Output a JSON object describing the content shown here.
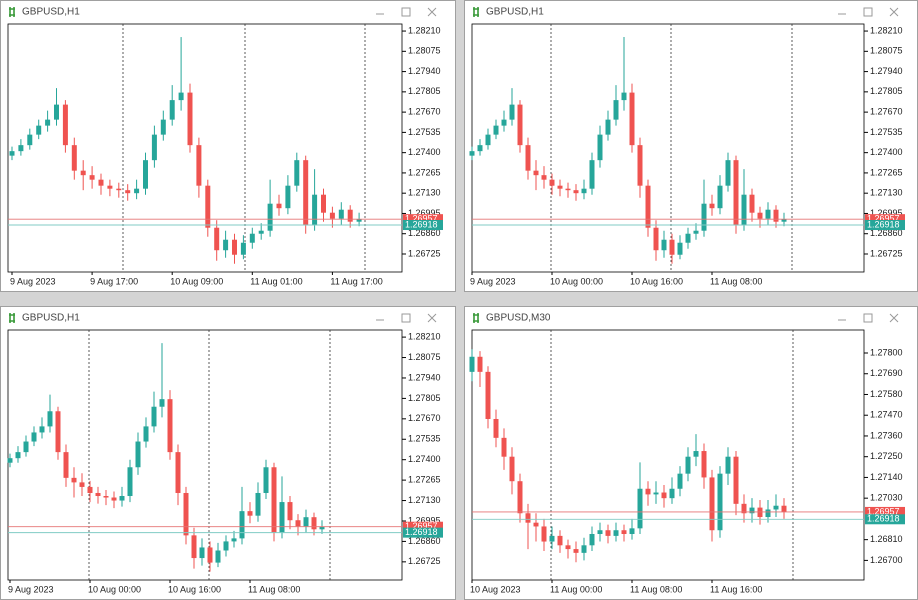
{
  "chart_data": [
    {
      "type": "candlestick",
      "title": "GBPUSD,H1",
      "categories": [
        "9 Aug 2023",
        null,
        null,
        null,
        null,
        null,
        null,
        null,
        null,
        "9 Aug 17:00",
        null,
        null,
        null,
        null,
        null,
        null,
        null,
        null,
        "10 Aug 09:00",
        null,
        null,
        null,
        null,
        null,
        null,
        null,
        null,
        "11 Aug 01:00",
        null,
        null,
        null,
        null,
        null,
        null,
        null,
        null,
        "11 Aug 17:00",
        null,
        null,
        null
      ],
      "open": [
        1.2738,
        1.2741,
        1.2745,
        1.2752,
        1.2758,
        1.2762,
        1.2772,
        1.2745,
        1.2728,
        1.2725,
        1.2722,
        1.2718,
        1.2716,
        1.2715,
        1.2713,
        1.2716,
        1.2735,
        1.2752,
        1.2762,
        1.2775,
        1.278,
        1.2745,
        1.2718,
        1.269,
        1.2675,
        1.2682,
        1.2672,
        1.268,
        1.2686,
        1.2688,
        1.2706,
        1.2703,
        1.2718,
        1.2735,
        1.2692,
        1.2712,
        1.27,
        1.2696,
        1.2702,
        1.2694
      ],
      "high": [
        1.2744,
        1.2749,
        1.2756,
        1.2762,
        1.2768,
        1.2783,
        1.2775,
        1.275,
        1.2735,
        1.2731,
        1.2726,
        1.2722,
        1.272,
        1.2719,
        1.2722,
        1.274,
        1.2758,
        1.2768,
        1.2785,
        1.2817,
        1.2786,
        1.275,
        1.2722,
        1.2695,
        1.2688,
        1.2686,
        1.2685,
        1.269,
        1.2693,
        1.2722,
        1.2712,
        1.2725,
        1.274,
        1.2738,
        1.2729,
        1.2716,
        1.2704,
        1.2707,
        1.2705,
        1.27
      ],
      "low": [
        1.2735,
        1.2738,
        1.2742,
        1.2749,
        1.2754,
        1.2758,
        1.274,
        1.2722,
        1.2715,
        1.2716,
        1.2712,
        1.2711,
        1.271,
        1.2708,
        1.2709,
        1.2712,
        1.273,
        1.2748,
        1.2758,
        1.2768,
        1.274,
        1.271,
        1.2684,
        1.2668,
        1.267,
        1.2666,
        1.2669,
        1.2676,
        1.2682,
        1.2684,
        1.2698,
        1.2699,
        1.2714,
        1.2686,
        1.2688,
        1.2694,
        1.269,
        1.2692,
        1.269,
        1.2691
      ],
      "close": [
        1.2741,
        1.2745,
        1.2752,
        1.2758,
        1.2762,
        1.2772,
        1.2745,
        1.2728,
        1.2725,
        1.2722,
        1.2718,
        1.2716,
        1.2715,
        1.2713,
        1.2716,
        1.2735,
        1.2752,
        1.2762,
        1.2775,
        1.278,
        1.2745,
        1.2718,
        1.269,
        1.2675,
        1.2682,
        1.2672,
        1.268,
        1.2686,
        1.2688,
        1.2706,
        1.2703,
        1.2718,
        1.2735,
        1.2692,
        1.2712,
        1.27,
        1.2696,
        1.2702,
        1.2694,
        1.26957
      ],
      "up_color": "#26a69a",
      "down_color": "#ef5350",
      "ylim": [
        1.26605,
        1.28257
      ],
      "yticks": [
        {
          "value": 1.2821,
          "label": "1.28210"
        },
        1.28075,
        {
          "value": 1.2794,
          "label": "1.27940"
        },
        1.27805,
        {
          "value": 1.2767,
          "label": "1.27670"
        },
        1.27535,
        {
          "value": 1.274,
          "label": "1.27400"
        },
        1.27265,
        {
          "value": 1.2713,
          "label": "1.27130"
        },
        1.26995,
        {
          "value": 1.2686,
          "label": "1.26860"
        },
        1.26725
      ],
      "ask": 1.26957,
      "bid": 1.26918
    },
    {
      "type": "candlestick",
      "title": "GBPUSD,H1",
      "categories": [
        "9 Aug 2023",
        null,
        null,
        null,
        null,
        null,
        null,
        null,
        null,
        null,
        "10 Aug 00:00",
        null,
        null,
        null,
        null,
        null,
        null,
        null,
        null,
        null,
        "10 Aug 16:00",
        null,
        null,
        null,
        null,
        null,
        null,
        null,
        null,
        null,
        "11 Aug 08:00",
        null,
        null,
        null,
        null,
        null,
        null,
        null,
        null,
        null
      ],
      "open": [
        1.2738,
        1.2741,
        1.2745,
        1.2752,
        1.2758,
        1.2762,
        1.2772,
        1.2745,
        1.2728,
        1.2725,
        1.2722,
        1.2718,
        1.2716,
        1.2715,
        1.2713,
        1.2716,
        1.2735,
        1.2752,
        1.2762,
        1.2775,
        1.278,
        1.2745,
        1.2718,
        1.269,
        1.2675,
        1.2682,
        1.2672,
        1.268,
        1.2686,
        1.2688,
        1.2706,
        1.2703,
        1.2718,
        1.2735,
        1.2692,
        1.2712,
        1.27,
        1.2696,
        1.2702,
        1.2694
      ],
      "high": [
        1.2744,
        1.2749,
        1.2756,
        1.2762,
        1.2768,
        1.2783,
        1.2775,
        1.275,
        1.2735,
        1.2731,
        1.2726,
        1.2722,
        1.272,
        1.2719,
        1.2722,
        1.274,
        1.2758,
        1.2768,
        1.2785,
        1.2817,
        1.2786,
        1.275,
        1.2722,
        1.2695,
        1.2688,
        1.2686,
        1.2685,
        1.269,
        1.2693,
        1.2722,
        1.2712,
        1.2725,
        1.274,
        1.2738,
        1.2729,
        1.2716,
        1.2704,
        1.2707,
        1.2705,
        1.27
      ],
      "low": [
        1.2735,
        1.2738,
        1.2742,
        1.2749,
        1.2754,
        1.2758,
        1.274,
        1.2722,
        1.2715,
        1.2716,
        1.2712,
        1.2711,
        1.271,
        1.2708,
        1.2709,
        1.2712,
        1.273,
        1.2748,
        1.2758,
        1.2768,
        1.274,
        1.271,
        1.2684,
        1.2668,
        1.267,
        1.2666,
        1.2669,
        1.2676,
        1.2682,
        1.2684,
        1.2698,
        1.2699,
        1.2714,
        1.2686,
        1.2688,
        1.2694,
        1.269,
        1.2692,
        1.269,
        1.2691
      ],
      "close": [
        1.2741,
        1.2745,
        1.2752,
        1.2758,
        1.2762,
        1.2772,
        1.2745,
        1.2728,
        1.2725,
        1.2722,
        1.2718,
        1.2716,
        1.2715,
        1.2713,
        1.2716,
        1.2735,
        1.2752,
        1.2762,
        1.2775,
        1.278,
        1.2745,
        1.2718,
        1.269,
        1.2675,
        1.2682,
        1.2672,
        1.268,
        1.2686,
        1.2688,
        1.2706,
        1.2703,
        1.2718,
        1.2735,
        1.2692,
        1.2712,
        1.27,
        1.2696,
        1.2702,
        1.2694,
        1.26957
      ],
      "up_color": "#26a69a",
      "down_color": "#ef5350",
      "ylim": [
        1.26605,
        1.28257
      ],
      "yticks": [
        {
          "value": 1.2821,
          "label": "1.28210"
        },
        1.28075,
        {
          "value": 1.2794,
          "label": "1.27940"
        },
        1.27805,
        {
          "value": 1.2767,
          "label": "1.27670"
        },
        1.27535,
        {
          "value": 1.274,
          "label": "1.27400"
        },
        1.27265,
        {
          "value": 1.2713,
          "label": "1.27130"
        },
        1.26995,
        {
          "value": 1.2686,
          "label": "1.26860"
        },
        1.26725
      ],
      "ask": 1.26957,
      "bid": 1.26918
    },
    {
      "type": "candlestick",
      "title": "GBPUSD,H1",
      "categories": [
        "9 Aug 2023",
        null,
        null,
        null,
        null,
        null,
        null,
        null,
        null,
        null,
        "10 Aug 00:00",
        null,
        null,
        null,
        null,
        null,
        null,
        null,
        null,
        null,
        "10 Aug 16:00",
        null,
        null,
        null,
        null,
        null,
        null,
        null,
        null,
        null,
        "11 Aug 08:00",
        null,
        null,
        null,
        null,
        null,
        null,
        null,
        null,
        null
      ],
      "open": [
        1.2738,
        1.2741,
        1.2745,
        1.2752,
        1.2758,
        1.2762,
        1.2772,
        1.2745,
        1.2728,
        1.2725,
        1.2722,
        1.2718,
        1.2716,
        1.2715,
        1.2713,
        1.2716,
        1.2735,
        1.2752,
        1.2762,
        1.2775,
        1.278,
        1.2745,
        1.2718,
        1.269,
        1.2675,
        1.2682,
        1.2672,
        1.268,
        1.2686,
        1.2688,
        1.2706,
        1.2703,
        1.2718,
        1.2735,
        1.2692,
        1.2712,
        1.27,
        1.2696,
        1.2702,
        1.2694
      ],
      "high": [
        1.2744,
        1.2749,
        1.2756,
        1.2762,
        1.2768,
        1.2783,
        1.2775,
        1.275,
        1.2735,
        1.2731,
        1.2726,
        1.2722,
        1.272,
        1.2719,
        1.2722,
        1.274,
        1.2758,
        1.2768,
        1.2785,
        1.2817,
        1.2786,
        1.275,
        1.2722,
        1.2695,
        1.2688,
        1.2686,
        1.2685,
        1.269,
        1.2693,
        1.2722,
        1.2712,
        1.2725,
        1.274,
        1.2738,
        1.2729,
        1.2716,
        1.2704,
        1.2707,
        1.2705,
        1.27
      ],
      "low": [
        1.2735,
        1.2738,
        1.2742,
        1.2749,
        1.2754,
        1.2758,
        1.274,
        1.2722,
        1.2715,
        1.2716,
        1.2712,
        1.2711,
        1.271,
        1.2708,
        1.2709,
        1.2712,
        1.273,
        1.2748,
        1.2758,
        1.2768,
        1.274,
        1.271,
        1.2684,
        1.2668,
        1.267,
        1.2666,
        1.2669,
        1.2676,
        1.2682,
        1.2684,
        1.2698,
        1.2699,
        1.2714,
        1.2686,
        1.2688,
        1.2694,
        1.269,
        1.2692,
        1.269,
        1.2691
      ],
      "close": [
        1.2741,
        1.2745,
        1.2752,
        1.2758,
        1.2762,
        1.2772,
        1.2745,
        1.2728,
        1.2725,
        1.2722,
        1.2718,
        1.2716,
        1.2715,
        1.2713,
        1.2716,
        1.2735,
        1.2752,
        1.2762,
        1.2775,
        1.278,
        1.2745,
        1.2718,
        1.269,
        1.2675,
        1.2682,
        1.2672,
        1.268,
        1.2686,
        1.2688,
        1.2706,
        1.2703,
        1.2718,
        1.2735,
        1.2692,
        1.2712,
        1.27,
        1.2696,
        1.2702,
        1.2694,
        1.26957
      ],
      "up_color": "#26a69a",
      "down_color": "#ef5350",
      "ylim": [
        1.26605,
        1.28257
      ],
      "yticks": [
        {
          "value": 1.2821,
          "label": "1.28210"
        },
        1.28075,
        {
          "value": 1.2794,
          "label": "1.27940"
        },
        1.27805,
        {
          "value": 1.2767,
          "label": "1.27670"
        },
        1.27535,
        {
          "value": 1.274,
          "label": "1.27400"
        },
        1.27265,
        {
          "value": 1.2713,
          "label": "1.27130"
        },
        1.26995,
        {
          "value": 1.2686,
          "label": "1.26860"
        },
        1.26725
      ],
      "ask": 1.26957,
      "bid": 1.26918
    },
    {
      "type": "candlestick",
      "title": "GBPUSD,M30",
      "categories": [
        "10 Aug 2023",
        null,
        null,
        null,
        null,
        null,
        null,
        null,
        null,
        null,
        "11 Aug 00:00",
        null,
        null,
        null,
        null,
        null,
        null,
        null,
        null,
        null,
        "11 Aug 08:00",
        null,
        null,
        null,
        null,
        null,
        null,
        null,
        null,
        null,
        "11 Aug 16:00",
        null,
        null,
        null,
        null,
        null,
        null,
        null,
        null,
        null
      ],
      "open": [
        1.277,
        1.2778,
        1.277,
        1.2745,
        1.2735,
        1.2725,
        1.2712,
        1.2695,
        1.269,
        1.2688,
        1.268,
        1.2683,
        1.2678,
        1.2676,
        1.2674,
        1.2678,
        1.2684,
        1.2686,
        1.2683,
        1.2686,
        1.2684,
        1.2687,
        1.2708,
        1.2705,
        1.2706,
        1.2703,
        1.2708,
        1.2716,
        1.2725,
        1.2728,
        1.2714,
        1.2686,
        1.2716,
        1.2725,
        1.27,
        1.2695,
        1.2698,
        1.2693,
        1.2697,
        1.2699
      ],
      "high": [
        1.2782,
        1.2781,
        1.2773,
        1.275,
        1.274,
        1.273,
        1.2716,
        1.27,
        1.2695,
        1.2692,
        1.2688,
        1.2686,
        1.2681,
        1.268,
        1.2682,
        1.2688,
        1.269,
        1.2689,
        1.269,
        1.2689,
        1.2692,
        1.2722,
        1.2712,
        1.2712,
        1.271,
        1.2714,
        1.272,
        1.273,
        1.2737,
        1.2732,
        1.2718,
        1.272,
        1.273,
        1.2728,
        1.2705,
        1.2703,
        1.2702,
        1.2702,
        1.2705,
        1.2703
      ],
      "low": [
        1.2765,
        1.2762,
        1.274,
        1.273,
        1.2718,
        1.2705,
        1.269,
        1.2676,
        1.268,
        1.2675,
        1.2676,
        1.2674,
        1.2671,
        1.2669,
        1.267,
        1.2675,
        1.268,
        1.2679,
        1.268,
        1.268,
        1.2681,
        1.2684,
        1.2699,
        1.27,
        1.2698,
        1.27,
        1.2704,
        1.2712,
        1.272,
        1.2708,
        1.268,
        1.2682,
        1.271,
        1.2694,
        1.269,
        1.269,
        1.2689,
        1.269,
        1.2693,
        1.2692
      ],
      "close": [
        1.2778,
        1.277,
        1.2745,
        1.2735,
        1.2725,
        1.2712,
        1.2695,
        1.269,
        1.2688,
        1.268,
        1.2683,
        1.2678,
        1.2676,
        1.2674,
        1.2678,
        1.2684,
        1.2686,
        1.2683,
        1.2686,
        1.2684,
        1.2687,
        1.2708,
        1.2705,
        1.2706,
        1.2703,
        1.2708,
        1.2716,
        1.2725,
        1.2728,
        1.2714,
        1.2686,
        1.2716,
        1.2725,
        1.27,
        1.2695,
        1.2698,
        1.2693,
        1.2697,
        1.2699,
        1.26957
      ],
      "up_color": "#26a69a",
      "down_color": "#ef5350",
      "ylim": [
        1.26596,
        1.27922
      ],
      "yticks": [
        {
          "value": 1.278,
          "label": "1.27800"
        },
        {
          "value": 1.2769,
          "label": "1.27690"
        },
        {
          "value": 1.2758,
          "label": "1.27580"
        },
        {
          "value": 1.2747,
          "label": "1.27470"
        },
        {
          "value": 1.2736,
          "label": "1.27360"
        },
        {
          "value": 1.2725,
          "label": "1.27250"
        },
        {
          "value": 1.2714,
          "label": "1.27140"
        },
        {
          "value": 1.2703,
          "label": "1.27030"
        },
        {
          "value": 1.2681,
          "label": "1.26810"
        },
        {
          "value": 1.267,
          "label": "1.26700"
        }
      ],
      "ask": 1.26957,
      "bid": 1.26918
    }
  ]
}
